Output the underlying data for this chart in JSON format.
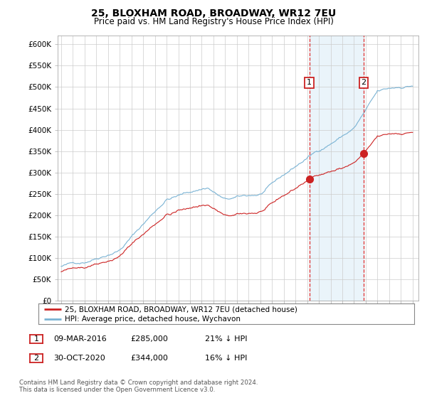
{
  "title": "25, BLOXHAM ROAD, BROADWAY, WR12 7EU",
  "subtitle": "Price paid vs. HM Land Registry's House Price Index (HPI)",
  "ylim": [
    0,
    620000
  ],
  "yticks": [
    0,
    50000,
    100000,
    150000,
    200000,
    250000,
    300000,
    350000,
    400000,
    450000,
    500000,
    550000,
    600000
  ],
  "ytick_labels": [
    "£0",
    "£50K",
    "£100K",
    "£150K",
    "£200K",
    "£250K",
    "£300K",
    "£350K",
    "£400K",
    "£450K",
    "£500K",
    "£550K",
    "£600K"
  ],
  "hpi_color": "#7ab3d4",
  "hpi_fill_color": "#ddeef7",
  "price_color": "#cc2222",
  "marker1_date_label": "09-MAR-2016",
  "marker1_price": 285000,
  "marker1_pct": "21% ↓ HPI",
  "marker1_x": 2016.18,
  "marker1_y": 285000,
  "marker2_date_label": "30-OCT-2020",
  "marker2_price": 344000,
  "marker2_pct": "16% ↓ HPI",
  "marker2_x": 2020.83,
  "marker2_y": 344000,
  "legend_label1": "25, BLOXHAM ROAD, BROADWAY, WR12 7EU (detached house)",
  "legend_label2": "HPI: Average price, detached house, Wychavon",
  "footnote": "Contains HM Land Registry data © Crown copyright and database right 2024.\nThis data is licensed under the Open Government Licence v3.0.",
  "background_color": "#ffffff",
  "grid_color": "#cccccc",
  "xlim_left": 1994.7,
  "xlim_right": 2025.5,
  "x_start": 1995,
  "x_end": 2025
}
